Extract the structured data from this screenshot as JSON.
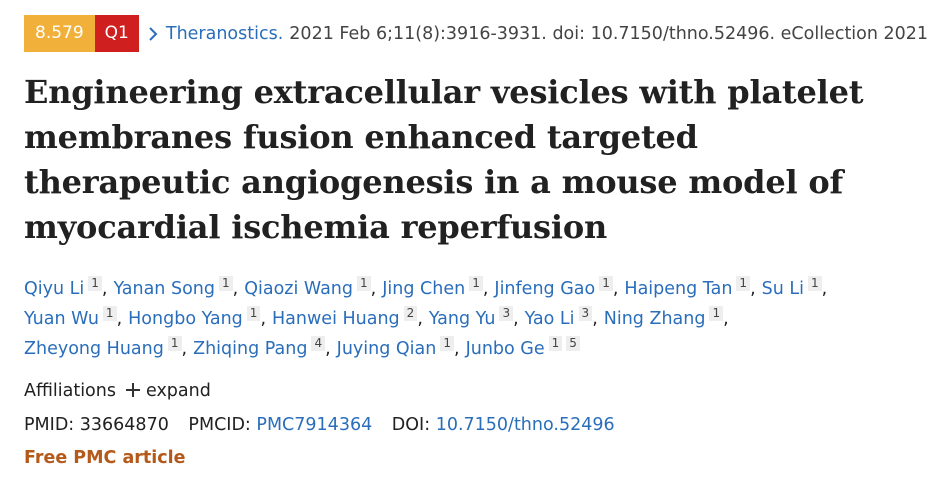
{
  "badges": {
    "impact": "8.579",
    "quartile": "Q1"
  },
  "citation": {
    "journal": "Theranostics.",
    "details": "2021 Feb 6;11(8):3916-3931. doi: 10.7150/thno.52496. eCollection 2021."
  },
  "title": "Engineering extracellular vesicles with platelet membranes fusion enhanced targeted therapeutic angiogenesis in a mouse model of myocardial ischemia reperfusion",
  "author_separator": ",",
  "author_lines": [
    [
      {
        "name": "Qiyu Li",
        "affiliations": [
          "1"
        ]
      },
      {
        "name": "Yanan Song",
        "affiliations": [
          "1"
        ]
      },
      {
        "name": "Qiaozi Wang",
        "affiliations": [
          "1"
        ]
      },
      {
        "name": "Jing Chen",
        "affiliations": [
          "1"
        ]
      },
      {
        "name": "Jinfeng Gao",
        "affiliations": [
          "1"
        ]
      },
      {
        "name": "Haipeng Tan",
        "affiliations": [
          "1"
        ]
      },
      {
        "name": "Su Li",
        "affiliations": [
          "1"
        ]
      }
    ],
    [
      {
        "name": "Yuan Wu",
        "affiliations": [
          "1"
        ]
      },
      {
        "name": "Hongbo Yang",
        "affiliations": [
          "1"
        ]
      },
      {
        "name": "Hanwei Huang",
        "affiliations": [
          "2"
        ]
      },
      {
        "name": "Yang Yu",
        "affiliations": [
          "3"
        ]
      },
      {
        "name": "Yao Li",
        "affiliations": [
          "3"
        ]
      },
      {
        "name": "Ning Zhang",
        "affiliations": [
          "1"
        ]
      }
    ],
    [
      {
        "name": "Zheyong Huang",
        "affiliations": [
          "1"
        ]
      },
      {
        "name": "Zhiqing Pang",
        "affiliations": [
          "4"
        ]
      },
      {
        "name": "Juying Qian",
        "affiliations": [
          "1"
        ]
      },
      {
        "name": "Junbo Ge",
        "affiliations": [
          "1",
          "5"
        ]
      }
    ]
  ],
  "affiliations": {
    "label": "Affiliations",
    "expand": "expand"
  },
  "ids": {
    "pmid_label": "PMID:",
    "pmid": "33664870",
    "pmcid_label": "PMCID:",
    "pmcid": "PMC7914364",
    "doi_label": "DOI:",
    "doi": "10.7150/thno.52496"
  },
  "free_label": "Free PMC article"
}
